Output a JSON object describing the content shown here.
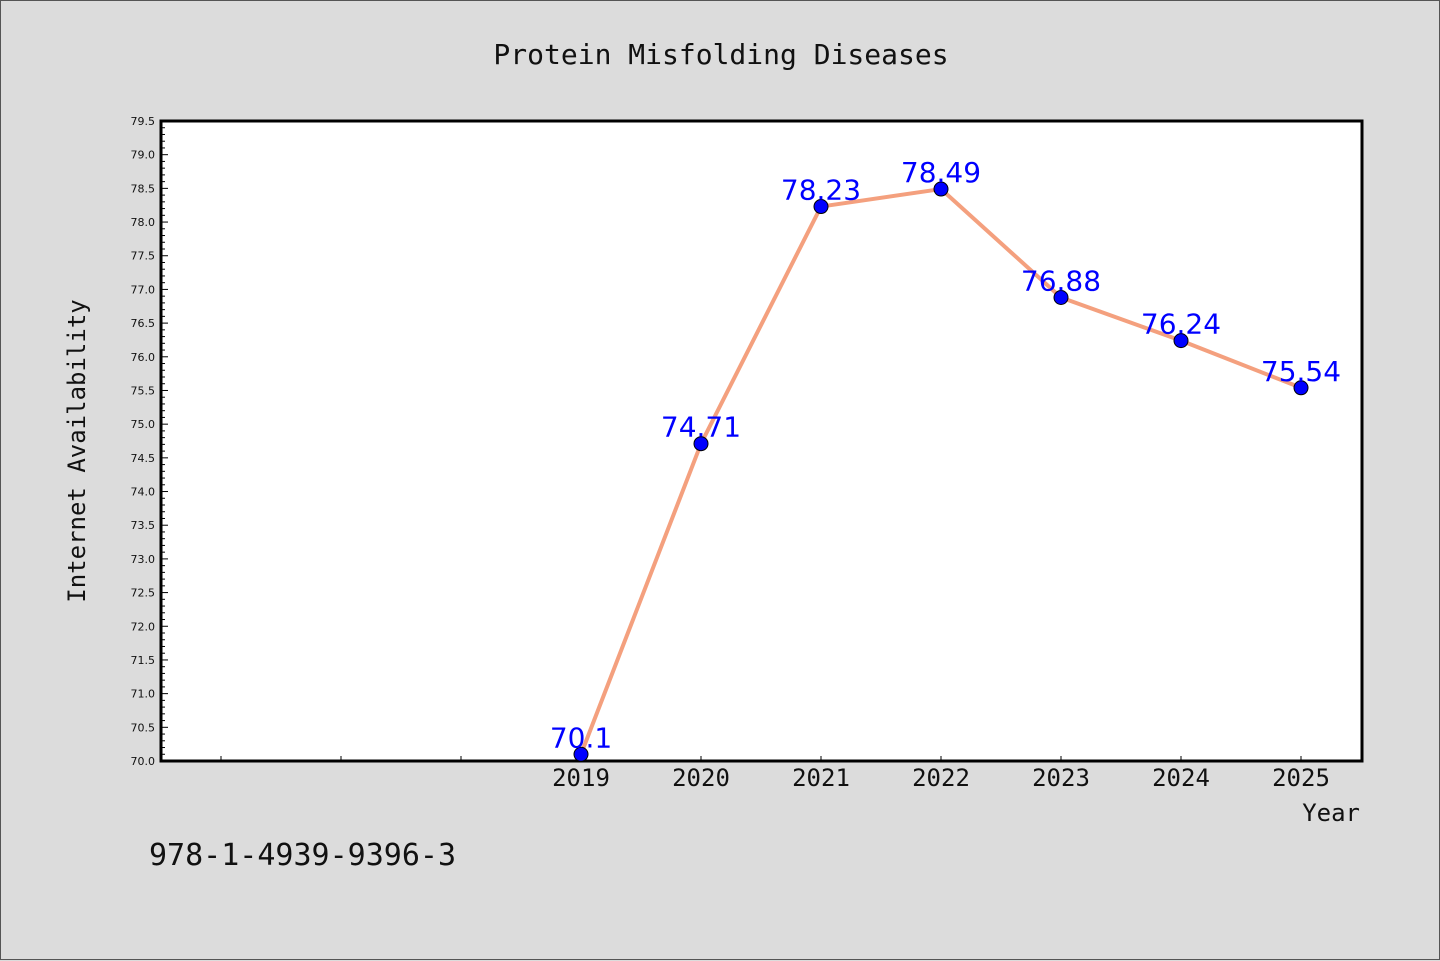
{
  "chart_data": {
    "type": "line",
    "title": "Protein Misfolding Diseases",
    "xlabel": "Year",
    "ylabel": "Internet Availability",
    "x_ticks": [
      "2019",
      "2020",
      "2021",
      "2022",
      "2023",
      "2024",
      "2025"
    ],
    "ylim": [
      70.0,
      79.5
    ],
    "y_ticks": [
      "70.0",
      "70.5",
      "71.0",
      "71.5",
      "72.0",
      "72.5",
      "73.0",
      "73.5",
      "74.0",
      "74.5",
      "75.0",
      "75.5",
      "76.0",
      "76.5",
      "77.0",
      "77.5",
      "78.0",
      "78.5",
      "79.0",
      "79.5"
    ],
    "grid": false,
    "series": [
      {
        "x": [
          "2019",
          "2020",
          "2021",
          "2022",
          "2023",
          "2024",
          "2025"
        ],
        "values": [
          70.1,
          74.71,
          78.23,
          78.49,
          76.88,
          76.24,
          75.54
        ],
        "labels": [
          "70.1",
          "74.71",
          "78.23",
          "78.49",
          "76.88",
          "76.24",
          "75.54"
        ],
        "line_color": "#f4a07e",
        "marker_color": "#0000ff",
        "label_color": "#0000ff"
      }
    ]
  },
  "annotation": "978-1-4939-9396-3"
}
